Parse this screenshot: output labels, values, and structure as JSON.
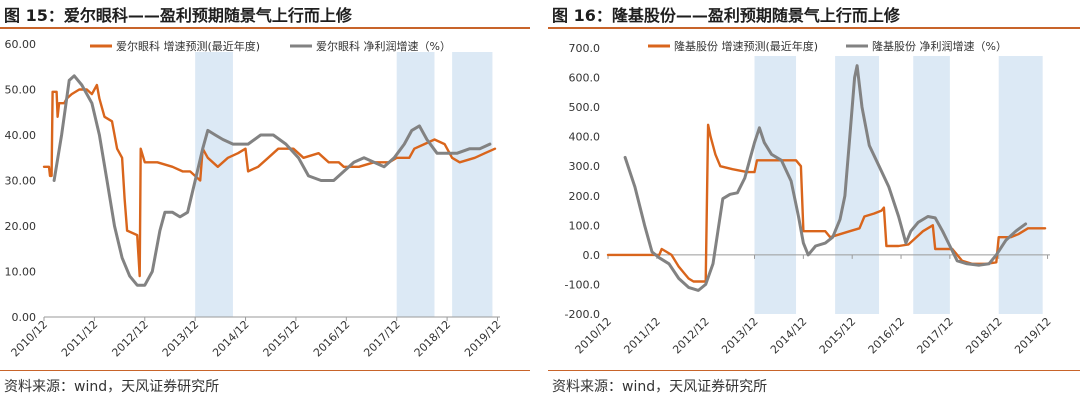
{
  "colors": {
    "accent": "#c8642a",
    "orange": "#d9651c",
    "gray": "#828282",
    "shade": "#dce9f5"
  },
  "footer_source": "资料来源：wind，天风证券研究所",
  "chart_data": [
    {
      "type": "line",
      "title": "图 15：爱尔眼科——盈利预期随景气上行而上修",
      "ylim": [
        0,
        60
      ],
      "yticks": [
        "0.00",
        "10.00",
        "20.00",
        "30.00",
        "40.00",
        "50.00",
        "60.00"
      ],
      "xlim": [
        2010.95,
        2020.0
      ],
      "xticks": [
        "2010/12",
        "2011/12",
        "2012/12",
        "2013/12",
        "2014/12",
        "2015/12",
        "2016/12",
        "2017/12",
        "2018/12",
        "2019/12"
      ],
      "shaded_periods": [
        [
          2013.95,
          2014.7
        ],
        [
          2017.95,
          2018.7
        ],
        [
          2019.05,
          2019.85
        ]
      ],
      "series": [
        {
          "name": "爱尔眼科 增速预测(最近年度)",
          "color": "#d9651c",
          "points": [
            [
              2010.95,
              33
            ],
            [
              2011.05,
              33
            ],
            [
              2011.07,
              31
            ],
            [
              2011.1,
              31
            ],
            [
              2011.12,
              49.5
            ],
            [
              2011.2,
              49.5
            ],
            [
              2011.22,
              44
            ],
            [
              2011.25,
              47
            ],
            [
              2011.35,
              47
            ],
            [
              2011.4,
              48
            ],
            [
              2011.5,
              49
            ],
            [
              2011.65,
              50
            ],
            [
              2011.8,
              50
            ],
            [
              2011.9,
              49
            ],
            [
              2012.0,
              51
            ],
            [
              2012.05,
              48
            ],
            [
              2012.15,
              44
            ],
            [
              2012.3,
              43
            ],
            [
              2012.4,
              37
            ],
            [
              2012.5,
              35
            ],
            [
              2012.55,
              26
            ],
            [
              2012.6,
              19
            ],
            [
              2012.8,
              18
            ],
            [
              2012.85,
              9
            ],
            [
              2012.87,
              37
            ],
            [
              2012.95,
              34
            ],
            [
              2013.2,
              34
            ],
            [
              2013.5,
              33
            ],
            [
              2013.7,
              32
            ],
            [
              2013.85,
              32
            ],
            [
              2014.05,
              30
            ],
            [
              2014.1,
              37
            ],
            [
              2014.2,
              35
            ],
            [
              2014.4,
              33
            ],
            [
              2014.6,
              35
            ],
            [
              2014.8,
              36
            ],
            [
              2014.95,
              37
            ],
            [
              2015.0,
              32
            ],
            [
              2015.2,
              33
            ],
            [
              2015.4,
              35
            ],
            [
              2015.6,
              37
            ],
            [
              2015.9,
              37
            ],
            [
              2016.1,
              35
            ],
            [
              2016.4,
              36
            ],
            [
              2016.6,
              34
            ],
            [
              2016.8,
              34
            ],
            [
              2016.9,
              33
            ],
            [
              2017.2,
              33
            ],
            [
              2017.5,
              34
            ],
            [
              2017.8,
              34
            ],
            [
              2017.95,
              35
            ],
            [
              2018.2,
              35
            ],
            [
              2018.3,
              37
            ],
            [
              2018.5,
              38
            ],
            [
              2018.7,
              39
            ],
            [
              2018.9,
              38
            ],
            [
              2019.05,
              35
            ],
            [
              2019.2,
              34
            ],
            [
              2019.5,
              35
            ],
            [
              2019.7,
              36
            ],
            [
              2019.9,
              37
            ]
          ]
        },
        {
          "name": "爱尔眼科 净利润增速（%）",
          "color": "#828282",
          "points": [
            [
              2011.15,
              30
            ],
            [
              2011.3,
              40
            ],
            [
              2011.45,
              52
            ],
            [
              2011.55,
              53
            ],
            [
              2011.7,
              51
            ],
            [
              2011.9,
              47
            ],
            [
              2012.05,
              40
            ],
            [
              2012.2,
              30
            ],
            [
              2012.35,
              20
            ],
            [
              2012.5,
              13
            ],
            [
              2012.65,
              9
            ],
            [
              2012.8,
              7
            ],
            [
              2012.95,
              7
            ],
            [
              2013.1,
              10
            ],
            [
              2013.25,
              19
            ],
            [
              2013.35,
              23
            ],
            [
              2013.5,
              23
            ],
            [
              2013.65,
              22
            ],
            [
              2013.8,
              23
            ],
            [
              2013.95,
              30
            ],
            [
              2014.1,
              37
            ],
            [
              2014.2,
              41
            ],
            [
              2014.35,
              40
            ],
            [
              2014.5,
              39
            ],
            [
              2014.7,
              38
            ],
            [
              2015.0,
              38
            ],
            [
              2015.25,
              40
            ],
            [
              2015.5,
              40
            ],
            [
              2015.75,
              38
            ],
            [
              2016.0,
              35
            ],
            [
              2016.2,
              31
            ],
            [
              2016.45,
              30
            ],
            [
              2016.7,
              30
            ],
            [
              2016.9,
              32
            ],
            [
              2017.1,
              34
            ],
            [
              2017.3,
              35
            ],
            [
              2017.5,
              34
            ],
            [
              2017.7,
              33
            ],
            [
              2017.9,
              35
            ],
            [
              2018.1,
              38
            ],
            [
              2018.25,
              41
            ],
            [
              2018.4,
              42
            ],
            [
              2018.55,
              39
            ],
            [
              2018.75,
              36
            ],
            [
              2018.95,
              36
            ],
            [
              2019.15,
              36
            ],
            [
              2019.4,
              37
            ],
            [
              2019.6,
              37
            ],
            [
              2019.8,
              38
            ]
          ]
        }
      ]
    },
    {
      "type": "line",
      "title": "图 16：隆基股份——盈利预期随景气上行而上修",
      "ylim": [
        -200,
        700
      ],
      "yticks": [
        "-200.0",
        "-100.0",
        "0.0",
        "100.0",
        "200.0",
        "300.0",
        "400.0",
        "500.0",
        "600.0",
        "700.0"
      ],
      "xlim": [
        2010.95,
        2020.0
      ],
      "xticks": [
        "2010/12",
        "2011/12",
        "2012/12",
        "2013/12",
        "2014/12",
        "2015/12",
        "2016/12",
        "2017/12",
        "2018/12",
        "2019/12"
      ],
      "shaded_periods": [
        [
          2013.95,
          2014.8
        ],
        [
          2015.6,
          2016.5
        ],
        [
          2017.2,
          2017.95
        ],
        [
          2018.95,
          2019.85
        ]
      ],
      "series": [
        {
          "name": "隆基股份 增速预测(最近年度)",
          "color": "#d9651c",
          "points": [
            [
              2010.95,
              0
            ],
            [
              2011.5,
              0
            ],
            [
              2011.8,
              0
            ],
            [
              2012.0,
              0
            ],
            [
              2012.05,
              20
            ],
            [
              2012.15,
              10
            ],
            [
              2012.25,
              0
            ],
            [
              2012.4,
              -40
            ],
            [
              2012.5,
              -60
            ],
            [
              2012.6,
              -80
            ],
            [
              2012.7,
              -90
            ],
            [
              2012.95,
              -90
            ],
            [
              2013.0,
              440
            ],
            [
              2013.05,
              400
            ],
            [
              2013.15,
              340
            ],
            [
              2013.25,
              300
            ],
            [
              2013.5,
              290
            ],
            [
              2013.8,
              280
            ],
            [
              2013.95,
              280
            ],
            [
              2014.0,
              320
            ],
            [
              2014.4,
              320
            ],
            [
              2014.8,
              320
            ],
            [
              2014.9,
              300
            ],
            [
              2014.95,
              80
            ],
            [
              2015.3,
              80
            ],
            [
              2015.4,
              80
            ],
            [
              2015.5,
              60
            ],
            [
              2015.7,
              70
            ],
            [
              2015.9,
              80
            ],
            [
              2016.1,
              90
            ],
            [
              2016.2,
              130
            ],
            [
              2016.4,
              140
            ],
            [
              2016.55,
              150
            ],
            [
              2016.6,
              160
            ],
            [
              2016.65,
              30
            ],
            [
              2016.9,
              30
            ],
            [
              2017.1,
              35
            ],
            [
              2017.2,
              50
            ],
            [
              2017.4,
              80
            ],
            [
              2017.6,
              100
            ],
            [
              2017.65,
              20
            ],
            [
              2018.0,
              20
            ],
            [
              2018.1,
              0
            ],
            [
              2018.2,
              -20
            ],
            [
              2018.4,
              -30
            ],
            [
              2018.7,
              -30
            ],
            [
              2018.9,
              -25
            ],
            [
              2018.95,
              60
            ],
            [
              2019.2,
              60
            ],
            [
              2019.35,
              70
            ],
            [
              2019.55,
              90
            ],
            [
              2019.9,
              90
            ]
          ]
        },
        {
          "name": "隆基股份 净利润增速（%）",
          "color": "#828282",
          "points": [
            [
              2011.3,
              330
            ],
            [
              2011.5,
              230
            ],
            [
              2011.7,
              100
            ],
            [
              2011.85,
              10
            ],
            [
              2012.0,
              -10
            ],
            [
              2012.2,
              -30
            ],
            [
              2012.4,
              -80
            ],
            [
              2012.6,
              -110
            ],
            [
              2012.8,
              -120
            ],
            [
              2012.95,
              -100
            ],
            [
              2013.1,
              -30
            ],
            [
              2013.2,
              80
            ],
            [
              2013.3,
              190
            ],
            [
              2013.45,
              205
            ],
            [
              2013.6,
              210
            ],
            [
              2013.75,
              260
            ],
            [
              2013.85,
              320
            ],
            [
              2013.95,
              380
            ],
            [
              2014.05,
              430
            ],
            [
              2014.15,
              380
            ],
            [
              2014.3,
              340
            ],
            [
              2014.5,
              320
            ],
            [
              2014.7,
              250
            ],
            [
              2014.85,
              130
            ],
            [
              2014.95,
              40
            ],
            [
              2015.05,
              0
            ],
            [
              2015.2,
              30
            ],
            [
              2015.4,
              40
            ],
            [
              2015.55,
              60
            ],
            [
              2015.7,
              120
            ],
            [
              2015.8,
              200
            ],
            [
              2015.9,
              400
            ],
            [
              2016.0,
              600
            ],
            [
              2016.05,
              640
            ],
            [
              2016.15,
              500
            ],
            [
              2016.3,
              370
            ],
            [
              2016.5,
              300
            ],
            [
              2016.7,
              230
            ],
            [
              2016.9,
              130
            ],
            [
              2017.05,
              40
            ],
            [
              2017.15,
              80
            ],
            [
              2017.3,
              110
            ],
            [
              2017.5,
              130
            ],
            [
              2017.65,
              125
            ],
            [
              2017.8,
              80
            ],
            [
              2017.95,
              30
            ],
            [
              2018.1,
              -20
            ],
            [
              2018.3,
              -30
            ],
            [
              2018.55,
              -35
            ],
            [
              2018.75,
              -30
            ],
            [
              2018.9,
              0
            ],
            [
              2019.1,
              50
            ],
            [
              2019.3,
              80
            ],
            [
              2019.5,
              105
            ]
          ]
        }
      ]
    }
  ]
}
